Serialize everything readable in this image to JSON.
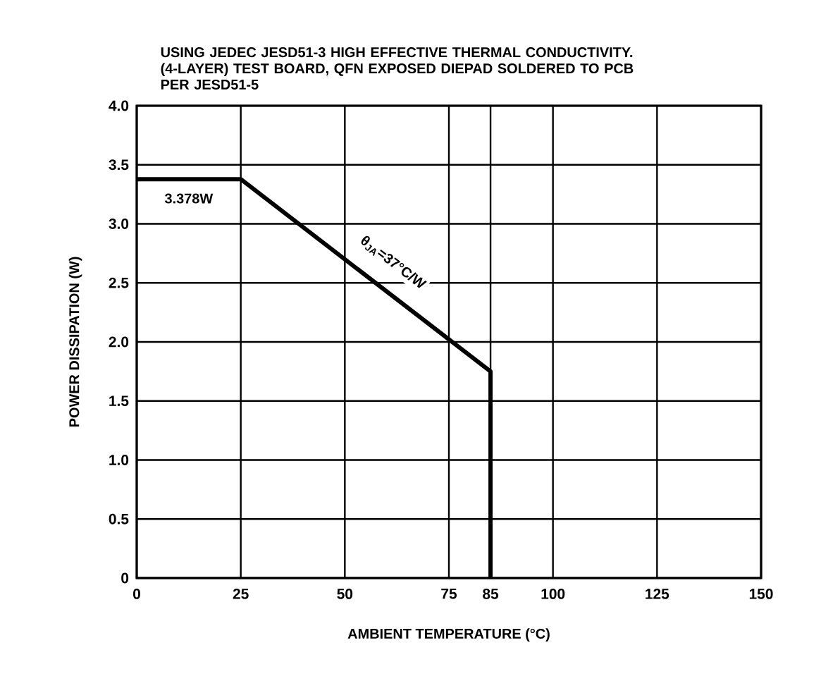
{
  "chart_data": {
    "type": "line",
    "title": "USING JEDEC JESD51-3 HIGH EFFECTIVE THERMAL CONDUCTIVITY. (4-LAYER) TEST BOARD, QFN EXPOSED DIEPAD SOLDERED TO PCB PER JESD51-5",
    "xlabel": "AMBIENT TEMPERATURE (°C)",
    "ylabel": "POWER DISSIPATION (W)",
    "series": [
      {
        "color": "#000000",
        "x": [
          0,
          25,
          85,
          85
        ],
        "values": [
          3.378,
          3.378,
          1.75,
          0
        ]
      }
    ],
    "xlim": [
      0,
      150
    ],
    "ylim": [
      0,
      4
    ],
    "xticks": [
      0,
      25,
      50,
      75,
      85,
      100,
      125,
      150
    ],
    "yticks": [
      0,
      0.5,
      {
        "value": 1,
        "label": "1.0"
      },
      1.5,
      {
        "value": 2,
        "label": "2.0"
      },
      2.5,
      {
        "value": 3,
        "label": "3.0"
      },
      3.5,
      {
        "value": 4,
        "label": "4.0"
      }
    ],
    "grid": true,
    "line_style": "solid",
    "marker": "none",
    "annotations": [
      {
        "text": "3.378W",
        "x": 12.5,
        "y": 3.378
      },
      {
        "text": "θ$_{JA}$=37°C/W",
        "x": 55,
        "y": 2.567
      }
    ]
  }
}
